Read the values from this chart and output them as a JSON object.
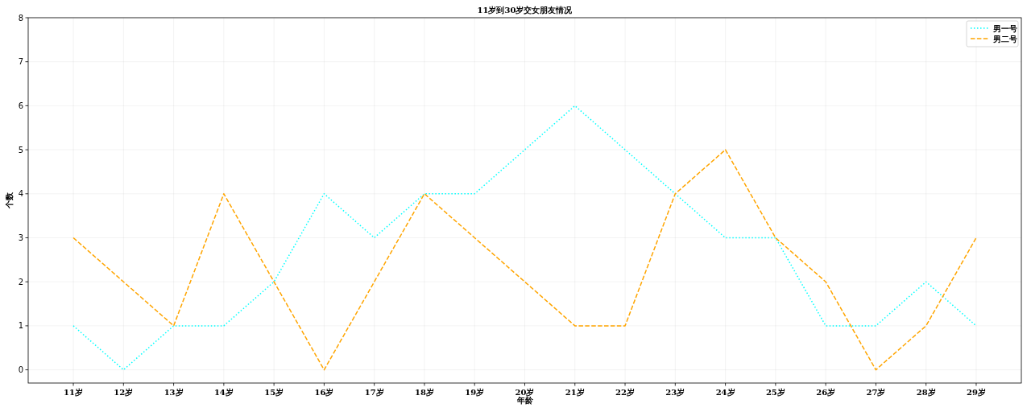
{
  "chart_data": {
    "type": "line",
    "title": "11岁到30岁交女朋友情况",
    "xlabel": "年龄",
    "ylabel": "个数",
    "categories": [
      "11岁",
      "12岁",
      "13岁",
      "14岁",
      "15岁",
      "16岁",
      "17岁",
      "18岁",
      "19岁",
      "20岁",
      "21岁",
      "22岁",
      "23岁",
      "24岁",
      "25岁",
      "26岁",
      "27岁",
      "28岁",
      "29岁"
    ],
    "series": [
      {
        "name": "男一号",
        "color": "#00ffff",
        "line_style": "dotted",
        "values": [
          1,
          0,
          1,
          1,
          2,
          4,
          3,
          4,
          4,
          5,
          6,
          5,
          4,
          3,
          3,
          1,
          1,
          2,
          1
        ]
      },
      {
        "name": "男二号",
        "color": "#ffa500",
        "line_style": "dashed",
        "values": [
          3,
          2,
          1,
          4,
          2,
          0,
          2,
          4,
          3,
          2,
          1,
          1,
          4,
          5,
          3,
          2,
          0,
          1,
          3
        ]
      }
    ],
    "ylim": [
      -0.3,
      8
    ],
    "yticks": [
      0,
      1,
      2,
      3,
      4,
      5,
      6,
      7,
      8
    ],
    "grid": true,
    "legend": "top right"
  }
}
